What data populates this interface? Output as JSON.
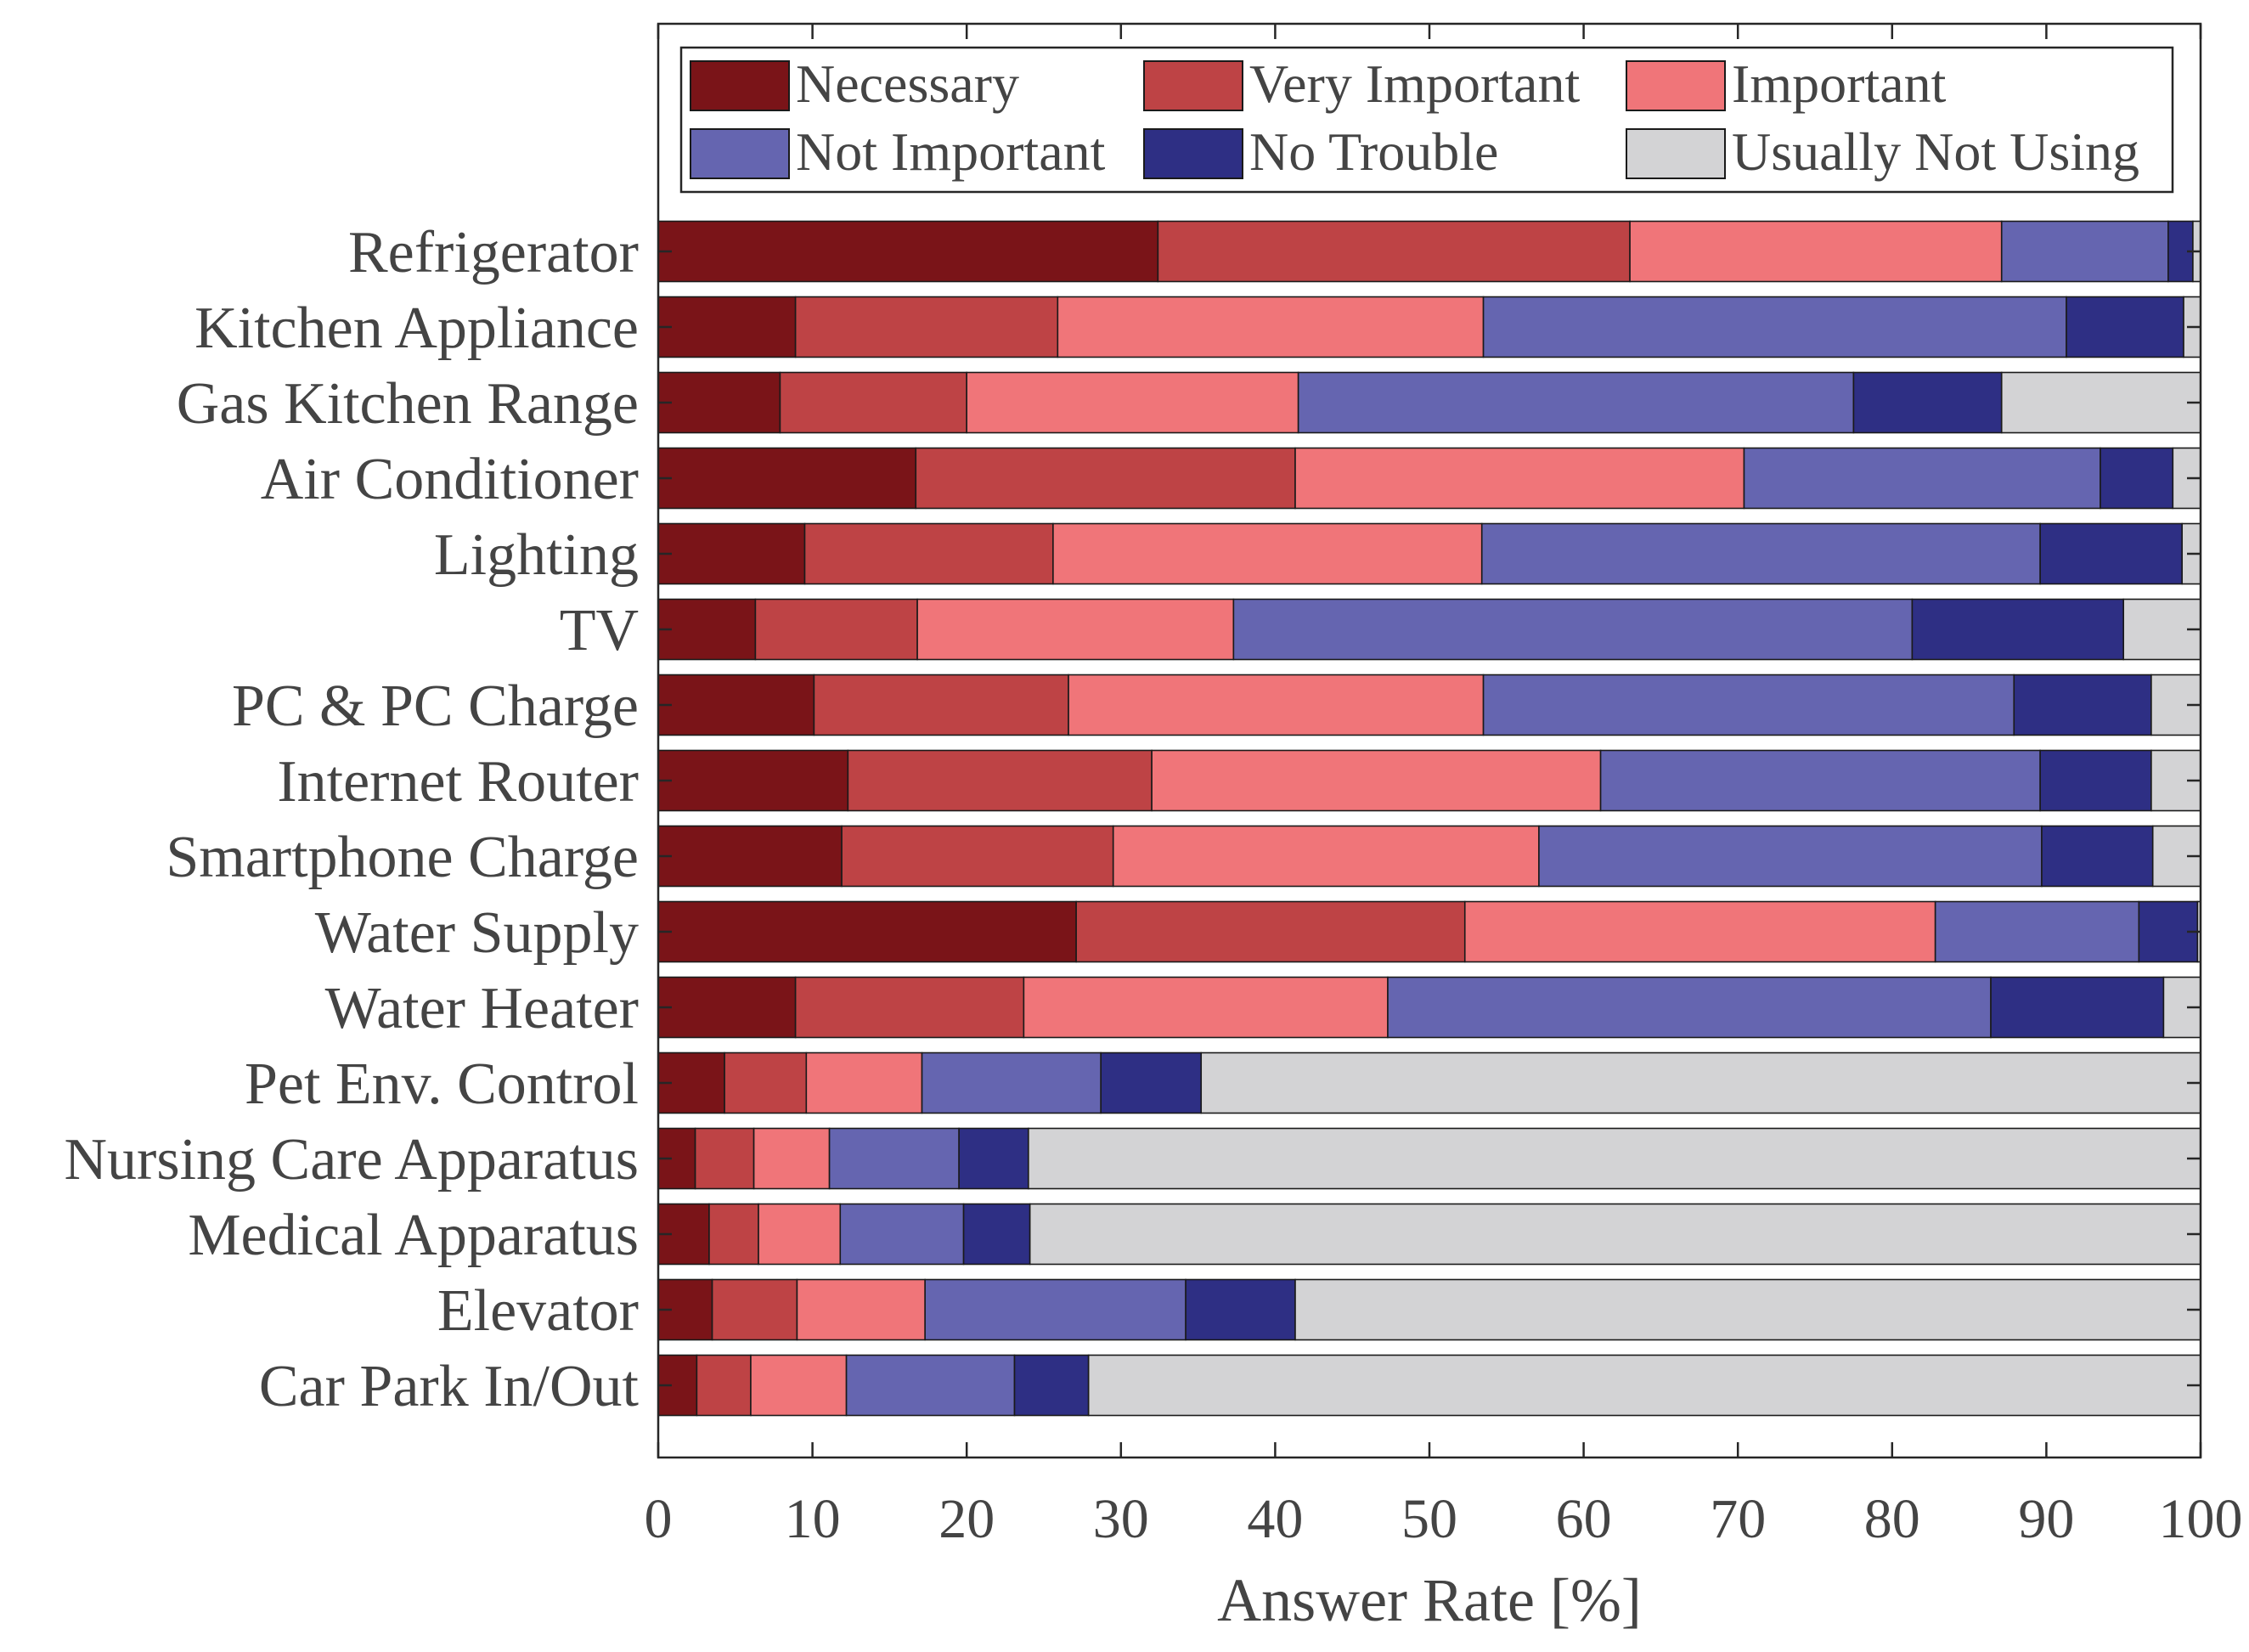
{
  "chart_data": {
    "type": "bar",
    "orientation": "horizontal",
    "stacked": true,
    "xlabel": "Answer Rate [%]",
    "ylabel": "",
    "xlim": [
      0,
      100
    ],
    "xticks": [
      0,
      10,
      20,
      30,
      40,
      50,
      60,
      70,
      80,
      90,
      100
    ],
    "legend_position": "top",
    "categories": [
      "Refrigerator",
      "Kitchen Appliance",
      "Gas Kitchen Range",
      "Air Conditioner",
      "Lighting",
      "TV",
      "PC & PC Charge",
      "Internet Router",
      "Smartphone Charge",
      "Water Supply",
      "Water Heater",
      "Pet Env. Control",
      "Nursing Care Apparatus",
      "Medical Apparatus",
      "Elevator",
      "Car Park In/Out"
    ],
    "series": [
      {
        "name": "Necessary",
        "color": "#7a1418",
        "values": [
          32.4,
          8.9,
          7.9,
          16.7,
          9.5,
          6.3,
          10.1,
          12.3,
          11.9,
          27.1,
          8.9,
          4.3,
          2.4,
          3.3,
          3.5,
          2.5
        ]
      },
      {
        "name": "Very Important",
        "color": "#be4345",
        "values": [
          30.6,
          17.0,
          12.1,
          24.6,
          16.1,
          10.5,
          16.5,
          19.7,
          17.6,
          25.2,
          14.8,
          5.3,
          3.8,
          3.2,
          5.5,
          3.5
        ]
      },
      {
        "name": "Important",
        "color": "#f07579",
        "values": [
          24.1,
          27.6,
          21.5,
          29.1,
          27.8,
          20.5,
          26.9,
          29.1,
          27.6,
          30.5,
          23.6,
          7.5,
          4.9,
          5.3,
          8.3,
          6.2
        ]
      },
      {
        "name": "Not Important",
        "color": "#6565b0",
        "values": [
          10.8,
          37.8,
          36.0,
          23.1,
          36.2,
          44.0,
          34.4,
          28.5,
          32.6,
          13.2,
          39.1,
          11.6,
          8.4,
          8.0,
          16.9,
          10.9
        ]
      },
      {
        "name": "No Trouble",
        "color": "#2e2f84",
        "values": [
          1.6,
          7.6,
          9.6,
          4.7,
          9.2,
          13.7,
          8.9,
          7.2,
          7.2,
          3.8,
          11.2,
          6.5,
          4.5,
          4.3,
          7.1,
          4.8
        ]
      },
      {
        "name": "Usually Not Using",
        "color": "#d3d3d5",
        "values": [
          0.5,
          1.1,
          12.9,
          1.8,
          1.2,
          5.0,
          3.2,
          3.2,
          3.1,
          0.2,
          2.4,
          64.8,
          76.0,
          75.9,
          58.7,
          72.1
        ]
      }
    ]
  }
}
